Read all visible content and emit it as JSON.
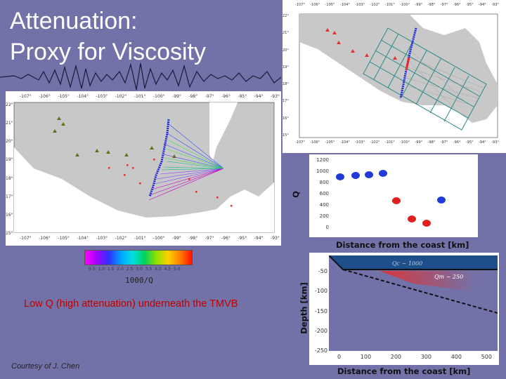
{
  "slide": {
    "title_line1": "Attenuation:",
    "title_line2": "Proxy for Viscosity",
    "low_q_text": "Low Q (high attenuation) underneath the TMVB",
    "courtesy": "Courtesy of J. Chen"
  },
  "left_map": {
    "lon_ticks": [
      "-107°",
      "-106°",
      "-105°",
      "-104°",
      "-103°",
      "-102°",
      "-101°",
      "-100°",
      "-99°",
      "-98°",
      "-97°",
      "-96°",
      "-95°",
      "-94°",
      "-93°"
    ],
    "lat_ticks": [
      "22°",
      "21°",
      "20°",
      "19°",
      "18°",
      "17°",
      "16°",
      "15°"
    ]
  },
  "colorbar": {
    "ticks": [
      "0.5",
      "1.0",
      "1.5",
      "2.0",
      "2.5",
      "3.0",
      "3.5",
      "4.0",
      "4.5",
      "5.0"
    ],
    "label": "1000/Q"
  },
  "right_map": {
    "lon_ticks": [
      "-107°",
      "-106°",
      "-105°",
      "-104°",
      "-103°",
      "-102°",
      "-101°",
      "-100°",
      "-99°",
      "-98°",
      "-97°",
      "-96°",
      "-95°",
      "-94°",
      "-93°"
    ],
    "lat_ticks": [
      "22°",
      "21°",
      "20°",
      "19°",
      "18°",
      "17°",
      "16°",
      "15°"
    ]
  },
  "q_plot": {
    "ylabel": "Q",
    "xlabel": "Distance from the coast [km]",
    "y_ticks": [
      "1200",
      "1000",
      "800",
      "600",
      "400",
      "200",
      "0"
    ]
  },
  "depth_plot": {
    "ylabel": "Depth [km]",
    "xlabel": "Distance from the coast [km]",
    "y_ticks": [
      "-50",
      "-100",
      "-150",
      "-200",
      "-250"
    ],
    "x_ticks": [
      "0",
      "100",
      "200",
      "300",
      "400",
      "500"
    ],
    "qc_label": "Qc ~ 1000",
    "qm_label": "Qm ~ 250"
  },
  "colors": {
    "background": "#7272a8",
    "land": "#c8c8c8",
    "coast_line": "#1f2ad6",
    "volcano": "#6b6b1a",
    "station": "#e03030",
    "title": "#ffffff",
    "low_q": "#c00000"
  }
}
